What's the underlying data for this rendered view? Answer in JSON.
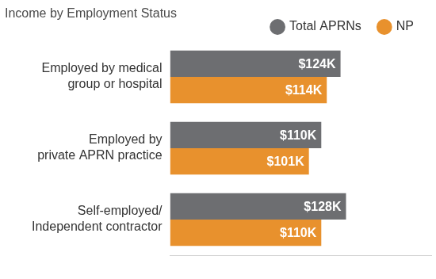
{
  "chart_data": {
    "type": "bar",
    "title": "Income by Employment Status",
    "orientation": "horizontal",
    "categories": [
      "Employed by medical\ngroup or hospital",
      "Employed by\nprivate APRN practice",
      "Self-employed/\nIndependent contractor"
    ],
    "series": [
      {
        "name": "Total APRNs",
        "color": "#6d6e71",
        "values": [
          124,
          110,
          128
        ],
        "value_labels": [
          "$124K",
          "$110K",
          "$128K"
        ]
      },
      {
        "name": "NP",
        "color": "#e8912d",
        "values": [
          114,
          101,
          110
        ],
        "value_labels": [
          "$114K",
          "$101K",
          "$110K"
        ]
      }
    ],
    "xlim": [
      0,
      190
    ],
    "tick_labels": false,
    "grid": false,
    "legend": "top right",
    "data_labels": true
  }
}
